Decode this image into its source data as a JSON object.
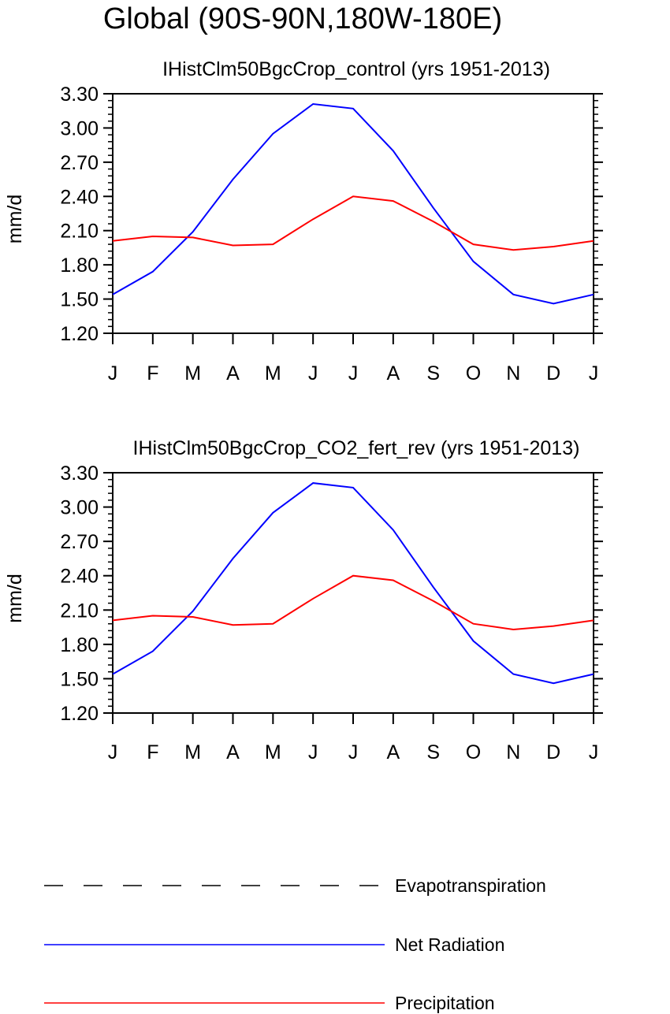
{
  "title": "Global (90S-90N,180W-180E)",
  "chart_data": [
    {
      "type": "line",
      "title": "IHistClm50BgcCrop_control (yrs 1951-2013)",
      "ylabel": "mm/d",
      "xlabel": "",
      "categories": [
        "J",
        "F",
        "M",
        "A",
        "M",
        "J",
        "J",
        "A",
        "S",
        "O",
        "N",
        "D",
        "J"
      ],
      "yticks": [
        "1.20",
        "1.50",
        "1.80",
        "2.10",
        "2.40",
        "2.70",
        "3.00",
        "3.30"
      ],
      "ylim": [
        1.2,
        3.3
      ],
      "grid": false,
      "series": [
        {
          "name": "Net Radiation",
          "color": "#0000ff",
          "values": [
            1.54,
            1.74,
            2.09,
            2.55,
            2.95,
            3.21,
            3.17,
            2.8,
            2.3,
            1.83,
            1.54,
            1.46,
            1.54
          ]
        },
        {
          "name": "Precipitation",
          "color": "#ff0000",
          "values": [
            2.01,
            2.05,
            2.04,
            1.97,
            1.98,
            2.2,
            2.4,
            2.36,
            2.18,
            1.98,
            1.93,
            1.96,
            2.01
          ]
        }
      ]
    },
    {
      "type": "line",
      "title": "IHistClm50BgcCrop_CO2_fert_rev (yrs 1951-2013)",
      "ylabel": "mm/d",
      "xlabel": "",
      "categories": [
        "J",
        "F",
        "M",
        "A",
        "M",
        "J",
        "J",
        "A",
        "S",
        "O",
        "N",
        "D",
        "J"
      ],
      "yticks": [
        "1.20",
        "1.50",
        "1.80",
        "2.10",
        "2.40",
        "2.70",
        "3.00",
        "3.30"
      ],
      "ylim": [
        1.2,
        3.3
      ],
      "grid": false,
      "series": [
        {
          "name": "Net Radiation",
          "color": "#0000ff",
          "values": [
            1.54,
            1.74,
            2.09,
            2.55,
            2.95,
            3.21,
            3.17,
            2.8,
            2.3,
            1.83,
            1.54,
            1.46,
            1.54
          ]
        },
        {
          "name": "Precipitation",
          "color": "#ff0000",
          "values": [
            2.01,
            2.05,
            2.04,
            1.97,
            1.98,
            2.2,
            2.4,
            2.36,
            2.18,
            1.98,
            1.93,
            1.96,
            2.01
          ]
        }
      ]
    }
  ],
  "legend": {
    "placement": "bottom",
    "items": [
      {
        "label": "Evapotranspiration",
        "color": "#000000",
        "style": "dashed"
      },
      {
        "label": "Net Radiation",
        "color": "#0000ff",
        "style": "solid"
      },
      {
        "label": "Precipitation",
        "color": "#ff0000",
        "style": "solid"
      }
    ]
  }
}
